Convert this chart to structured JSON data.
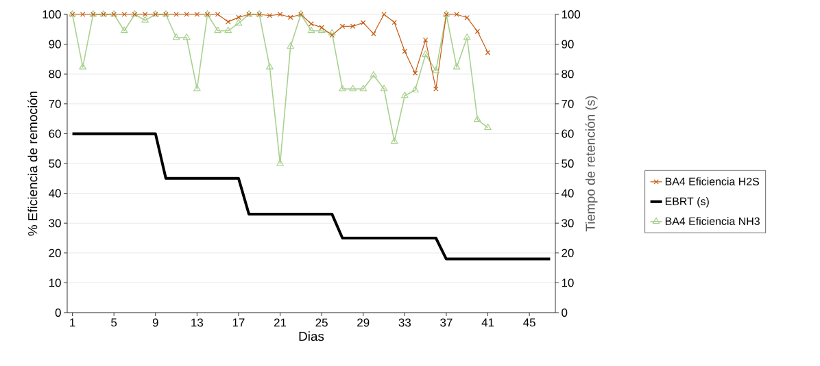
{
  "chart_data": {
    "type": "line",
    "xlabel": "Dias",
    "ylabel": "% Eficiencia de remoción",
    "y2label": "Tiempo de retención (s)",
    "x": [
      1,
      2,
      3,
      4,
      5,
      6,
      7,
      8,
      9,
      10,
      11,
      12,
      13,
      14,
      15,
      16,
      17,
      18,
      19,
      20,
      21,
      22,
      23,
      24,
      25,
      26,
      27,
      28,
      29,
      30,
      31,
      32,
      33,
      34,
      35,
      36,
      37,
      38,
      39,
      40,
      41,
      42,
      43,
      44,
      45,
      46,
      47
    ],
    "series": [
      {
        "name": "BA4 Eficiencia H2S",
        "color": "#c55a11",
        "marker": "cross",
        "values": [
          100,
          100,
          100,
          100,
          100,
          100,
          100,
          100,
          100,
          100,
          100,
          100,
          100,
          100,
          100,
          97.5,
          99,
          100,
          100,
          99.6,
          100,
          99,
          100,
          96.8,
          95.6,
          93,
          96,
          96,
          97.2,
          93.5,
          100,
          97.3,
          87.6,
          80.3,
          91.4,
          75,
          100,
          100,
          98.9,
          94.3,
          87.2,
          null,
          null,
          null,
          null,
          null,
          null
        ]
      },
      {
        "name": "EBRT (s)",
        "color": "#000000",
        "marker": "none",
        "axis": "y2",
        "values": [
          60,
          60,
          60,
          60,
          60,
          60,
          60,
          60,
          60,
          45,
          45,
          45,
          45,
          45,
          45,
          45,
          45,
          33,
          33,
          33,
          33,
          33,
          33,
          33,
          33,
          33,
          25,
          25,
          25,
          25,
          25,
          25,
          25,
          25,
          25,
          25,
          18,
          18,
          18,
          18,
          18,
          18,
          18,
          18,
          18,
          18,
          18
        ]
      },
      {
        "name": "BA4 Eficiencia NH3",
        "color": "#a9d18e",
        "marker": "triangle",
        "values": [
          100,
          82.3,
          100,
          100,
          100,
          94.5,
          100,
          98,
          100,
          100,
          92.2,
          92.2,
          75,
          100,
          94.5,
          94.5,
          97,
          100,
          100,
          82.3,
          50,
          89.2,
          100,
          94.5,
          94.5,
          93.7,
          75,
          75,
          75,
          79.6,
          75,
          57.4,
          72.7,
          74.6,
          86.5,
          81.1,
          100,
          82.3,
          92.2,
          64.7,
          62,
          null,
          null,
          null,
          null,
          null,
          null
        ]
      }
    ],
    "xlim": [
      0.5,
      47.5
    ],
    "xticks": [
      1,
      5,
      9,
      13,
      17,
      21,
      25,
      29,
      33,
      37,
      41,
      45
    ],
    "ylim": [
      0,
      100
    ],
    "yticks": [
      0,
      10,
      20,
      30,
      40,
      50,
      60,
      70,
      80,
      90,
      100
    ],
    "y2lim": [
      0,
      100
    ],
    "y2ticks": [
      0,
      10,
      20,
      30,
      40,
      50,
      60,
      70,
      80,
      90,
      100
    ],
    "grid": "y",
    "legend": "right"
  }
}
